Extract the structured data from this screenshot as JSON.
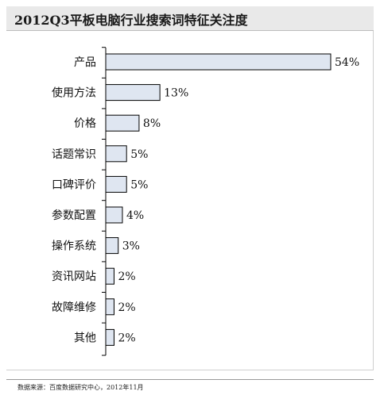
{
  "chart_data": {
    "type": "bar",
    "orientation": "horizontal",
    "title": "2012Q3平板电脑行业搜索词特征关注度",
    "categories": [
      "产品",
      "使用方法",
      "价格",
      "话题常识",
      "口碑评价",
      "参数配置",
      "操作系统",
      "资讯网站",
      "故障维修",
      "其他"
    ],
    "values": [
      54,
      13,
      8,
      5,
      5,
      4,
      3,
      2,
      2,
      2
    ],
    "value_labels": [
      "54%",
      "13%",
      "8%",
      "5%",
      "5%",
      "4%",
      "3%",
      "2%",
      "2%",
      "2%"
    ],
    "xlim": [
      0,
      54
    ],
    "grid": false,
    "legend": "none",
    "colors": {
      "bar_fill": "#dfe6f1",
      "bar_stroke": "#000000",
      "axis": "#000000"
    }
  },
  "footer": {
    "source": "数据来源：百度数据研究中心，2012年11月"
  }
}
